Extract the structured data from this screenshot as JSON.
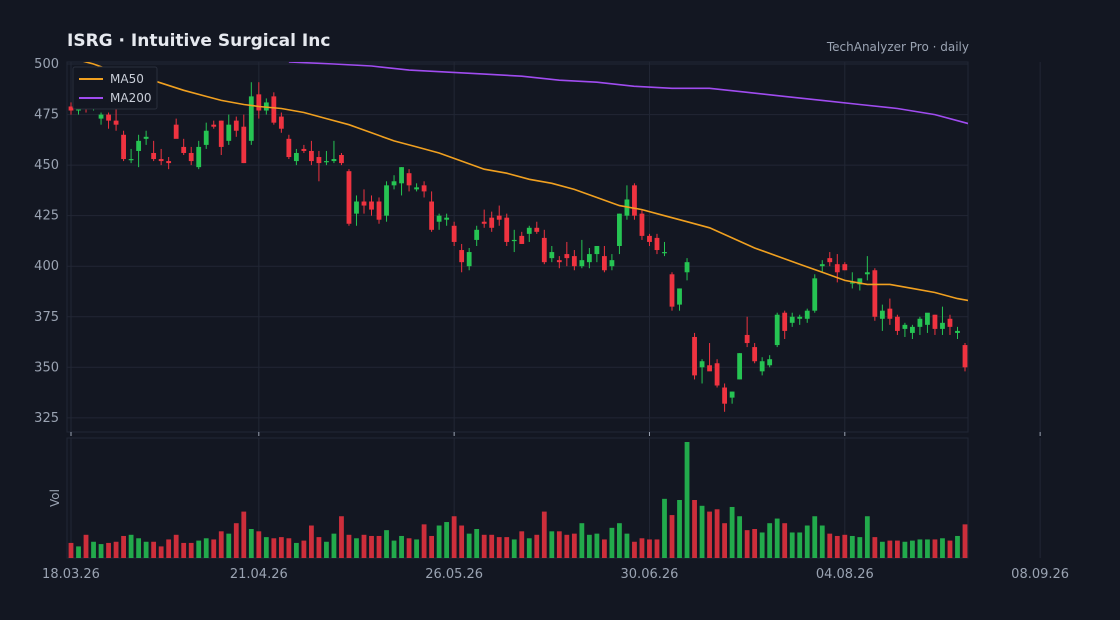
{
  "header": {
    "title": "ISRG  ·  Intuitive Surgical Inc",
    "subtitle": "TechAnalyzer Pro · daily"
  },
  "colors": {
    "background": "#131722",
    "up": "#26c453",
    "down": "#ef3340",
    "ma50": "#f0a020",
    "ma200": "#a04cf0",
    "grid": "#222735",
    "text": "#9aa3b2"
  },
  "chart_data": {
    "type": "candlestick",
    "price_axis": {
      "ylim": [
        318,
        501
      ],
      "ticks": [
        325,
        350,
        375,
        400,
        425,
        450,
        475,
        500
      ]
    },
    "volume_axis": {
      "ylabel": "Vol",
      "ylim": [
        0,
        100
      ]
    },
    "x_tick_labels": [
      {
        "index": 0,
        "label": "18.03.26"
      },
      {
        "index": 25,
        "label": "21.04.26"
      },
      {
        "index": 51,
        "label": "26.05.26"
      },
      {
        "index": 77,
        "label": "30.06.26"
      },
      {
        "index": 103,
        "label": "04.08.26"
      },
      {
        "index": 129,
        "label": "08.09.26"
      }
    ],
    "legend": {
      "position": "top-left",
      "entries": [
        "MA50",
        "MA200"
      ]
    },
    "ohlc": [
      [
        479,
        481,
        475,
        477
      ],
      [
        477,
        483,
        475,
        482
      ],
      [
        482,
        485,
        476,
        479
      ],
      [
        479,
        489,
        477,
        488
      ],
      [
        473,
        476,
        470,
        475
      ],
      [
        475,
        476,
        468,
        472
      ],
      [
        472,
        478,
        467,
        470
      ],
      [
        465,
        467,
        452,
        453
      ],
      [
        453,
        458,
        451,
        453
      ],
      [
        457,
        465,
        449,
        462
      ],
      [
        463,
        467,
        460,
        464
      ],
      [
        456,
        462,
        452,
        453
      ],
      [
        453,
        458,
        450,
        452
      ],
      [
        452,
        454,
        448,
        451
      ],
      [
        470,
        473,
        464,
        463
      ],
      [
        459,
        463,
        455,
        456
      ],
      [
        456,
        459,
        450,
        452
      ],
      [
        449,
        462,
        448,
        459
      ],
      [
        460,
        471,
        458,
        467
      ],
      [
        470,
        472,
        468,
        469
      ],
      [
        472,
        472,
        455,
        459
      ],
      [
        462,
        475,
        460,
        470
      ],
      [
        472,
        474,
        464,
        467
      ],
      [
        469,
        475,
        451,
        451
      ],
      [
        462,
        491,
        460,
        484
      ],
      [
        485,
        491,
        473,
        477
      ],
      [
        477,
        483,
        475,
        481
      ],
      [
        484,
        486,
        470,
        471
      ],
      [
        474,
        476,
        466,
        468
      ],
      [
        463,
        465,
        453,
        454
      ],
      [
        452,
        458,
        450,
        456
      ],
      [
        458,
        460,
        456,
        457
      ],
      [
        457,
        462,
        450,
        452
      ],
      [
        454,
        457,
        442,
        451
      ],
      [
        452,
        457,
        450,
        452
      ],
      [
        452,
        462,
        451,
        453
      ],
      [
        455,
        456,
        450,
        451
      ],
      [
        447,
        448,
        420,
        421
      ],
      [
        426,
        435,
        420,
        432
      ],
      [
        432,
        438,
        426,
        430
      ],
      [
        432,
        435,
        425,
        428
      ],
      [
        432,
        434,
        421,
        423
      ],
      [
        425,
        442,
        422,
        440
      ],
      [
        440,
        445,
        438,
        442
      ],
      [
        441,
        449,
        435,
        449
      ],
      [
        446,
        448,
        437,
        440
      ],
      [
        438,
        441,
        437,
        439
      ],
      [
        440,
        442,
        434,
        437
      ],
      [
        432,
        437,
        417,
        418
      ],
      [
        422,
        426,
        418,
        425
      ],
      [
        423,
        426,
        420,
        424
      ],
      [
        420,
        422,
        410,
        412
      ],
      [
        408,
        411,
        397,
        402
      ],
      [
        400,
        409,
        398,
        407
      ],
      [
        413,
        420,
        410,
        418
      ],
      [
        422,
        428,
        419,
        421
      ],
      [
        424,
        427,
        417,
        419
      ],
      [
        425,
        430,
        420,
        423
      ],
      [
        424,
        426,
        410,
        412
      ],
      [
        413,
        418,
        407,
        413
      ],
      [
        415,
        417,
        411,
        411
      ],
      [
        416,
        420,
        412,
        419
      ],
      [
        419,
        422,
        416,
        417
      ],
      [
        414,
        418,
        401,
        402
      ],
      [
        404,
        410,
        402,
        407
      ],
      [
        403,
        405,
        399,
        402
      ],
      [
        406,
        412,
        400,
        404
      ],
      [
        405,
        408,
        398,
        400
      ],
      [
        400,
        413,
        399,
        403
      ],
      [
        402,
        409,
        399,
        406
      ],
      [
        406,
        409,
        402,
        410
      ],
      [
        405,
        410,
        397,
        398
      ],
      [
        400,
        406,
        398,
        403
      ],
      [
        410,
        426,
        406,
        426
      ],
      [
        425,
        440,
        423,
        433
      ],
      [
        440,
        441,
        423,
        425
      ],
      [
        426,
        428,
        413,
        415
      ],
      [
        415,
        416,
        410,
        412
      ],
      [
        414,
        416,
        406,
        408
      ],
      [
        407,
        412,
        405,
        407
      ],
      [
        396,
        397,
        378,
        380
      ],
      [
        381,
        389,
        378,
        389
      ],
      [
        397,
        404,
        393,
        402
      ],
      [
        365,
        367,
        344,
        346
      ],
      [
        350,
        354,
        342,
        353
      ],
      [
        351,
        362,
        349,
        348
      ],
      [
        352,
        354,
        340,
        341
      ],
      [
        340,
        342,
        328,
        332
      ],
      [
        335,
        338,
        332,
        338
      ],
      [
        344,
        357,
        344,
        357
      ],
      [
        366,
        375,
        360,
        362
      ],
      [
        360,
        362,
        352,
        353
      ],
      [
        348,
        355,
        346,
        353
      ],
      [
        351,
        356,
        350,
        354
      ],
      [
        361,
        377,
        360,
        376
      ],
      [
        377,
        378,
        364,
        368
      ],
      [
        372,
        377,
        370,
        375
      ],
      [
        374,
        376,
        371,
        375
      ],
      [
        374,
        379,
        372,
        378
      ],
      [
        378,
        396,
        377,
        394
      ],
      [
        400,
        403,
        397,
        401
      ],
      [
        404,
        407,
        400,
        402
      ],
      [
        401,
        406,
        392,
        397
      ],
      [
        401,
        402,
        398,
        398
      ],
      [
        392,
        397,
        389,
        392
      ],
      [
        391,
        393,
        388,
        394
      ],
      [
        396,
        405,
        393,
        397
      ],
      [
        398,
        399,
        373,
        375
      ],
      [
        374,
        381,
        368,
        378
      ],
      [
        379,
        384,
        371,
        374
      ],
      [
        375,
        376,
        366,
        368
      ],
      [
        369,
        372,
        365,
        371
      ],
      [
        367,
        371,
        364,
        370
      ],
      [
        370,
        375,
        366,
        374
      ],
      [
        371,
        376,
        367,
        377
      ],
      [
        376,
        376,
        366,
        369
      ],
      [
        369,
        380,
        366,
        372
      ],
      [
        374,
        376,
        366,
        370
      ],
      [
        367,
        370,
        364,
        368
      ],
      [
        361,
        362,
        348,
        350
      ]
    ],
    "volume": [
      13,
      10,
      20,
      14,
      12,
      13,
      14,
      19,
      20,
      17,
      14,
      14,
      10,
      16,
      20,
      13,
      13,
      15,
      17,
      16,
      23,
      21,
      30,
      40,
      25,
      23,
      18,
      17,
      18,
      17,
      13,
      15,
      28,
      18,
      14,
      21,
      36,
      20,
      17,
      20,
      19,
      19,
      24,
      15,
      19,
      17,
      16,
      29,
      19,
      28,
      31,
      36,
      28,
      21,
      25,
      20,
      20,
      18,
      18,
      16,
      23,
      17,
      20,
      40,
      23,
      23,
      20,
      21,
      30,
      20,
      21,
      16,
      26,
      30,
      21,
      14,
      17,
      16,
      16,
      51,
      37,
      50,
      100,
      50,
      45,
      40,
      42,
      30,
      44,
      36,
      24,
      25,
      22,
      30,
      34,
      30,
      22,
      22,
      28,
      36,
      28,
      21,
      19,
      20,
      19,
      18,
      36,
      18,
      14,
      15,
      15,
      14,
      15,
      16,
      16,
      16,
      17,
      15,
      19,
      29
    ],
    "ma50": [
      [
        0,
        503
      ],
      [
        3,
        500
      ],
      [
        6,
        496
      ],
      [
        10,
        493
      ],
      [
        15,
        487
      ],
      [
        18,
        484
      ],
      [
        20,
        482
      ],
      [
        23,
        480
      ],
      [
        25,
        479
      ],
      [
        28,
        478
      ],
      [
        31,
        476
      ],
      [
        34,
        473
      ],
      [
        37,
        470
      ],
      [
        40,
        466
      ],
      [
        43,
        462
      ],
      [
        46,
        459
      ],
      [
        49,
        456
      ],
      [
        52,
        452
      ],
      [
        55,
        448
      ],
      [
        58,
        446
      ],
      [
        61,
        443
      ],
      [
        64,
        441
      ],
      [
        67,
        438
      ],
      [
        70,
        434
      ],
      [
        73,
        430
      ],
      [
        76,
        428
      ],
      [
        79,
        425
      ],
      [
        82,
        422
      ],
      [
        85,
        419
      ],
      [
        88,
        414
      ],
      [
        91,
        409
      ],
      [
        94,
        405
      ],
      [
        97,
        401
      ],
      [
        100,
        397
      ],
      [
        103,
        393
      ],
      [
        106,
        391
      ],
      [
        109,
        391
      ],
      [
        112,
        389
      ],
      [
        115,
        387
      ],
      [
        118,
        384
      ],
      [
        121,
        382
      ],
      [
        124,
        380
      ],
      [
        127,
        379
      ],
      [
        129,
        375
      ]
    ],
    "ma200": [
      [
        29,
        501
      ],
      [
        35,
        500
      ],
      [
        40,
        499
      ],
      [
        45,
        497
      ],
      [
        50,
        496
      ],
      [
        55,
        495
      ],
      [
        60,
        494
      ],
      [
        65,
        492
      ],
      [
        70,
        491
      ],
      [
        75,
        489
      ],
      [
        80,
        488
      ],
      [
        85,
        488
      ],
      [
        90,
        486
      ],
      [
        95,
        484
      ],
      [
        100,
        482
      ],
      [
        105,
        480
      ],
      [
        110,
        478
      ],
      [
        115,
        475
      ],
      [
        120,
        470
      ],
      [
        125,
        466
      ],
      [
        129,
        462
      ]
    ]
  }
}
